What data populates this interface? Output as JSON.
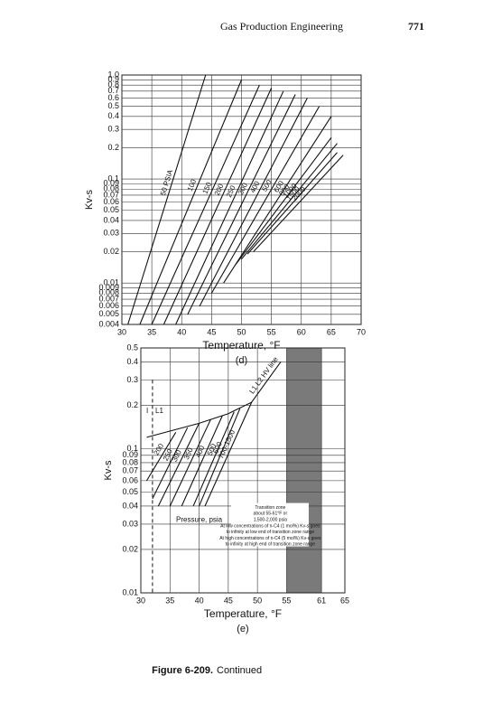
{
  "header": {
    "title": "Gas Production Engineering",
    "page": "771"
  },
  "caption": {
    "label": "Figure 6-209.",
    "text": "Continued"
  },
  "chart_data": [
    {
      "type": "line",
      "subtitle": "(d)",
      "xlabel": "Temperature, °F",
      "ylabel": "Kv-s",
      "ylog": true,
      "grid": true,
      "color": "#111111",
      "xlim": [
        30,
        70
      ],
      "xticks": [
        30,
        35,
        40,
        45,
        50,
        55,
        60,
        65,
        70
      ],
      "ylim": [
        0.004,
        1
      ],
      "yticks": [
        {
          "value": 1,
          "label": "1.0"
        },
        0.9,
        0.8,
        0.7,
        0.6,
        0.5,
        0.4,
        0.3,
        0.2,
        0.1,
        0.09,
        0.08,
        0.07,
        0.06,
        0.05,
        0.04,
        0.03,
        0.02,
        0.01,
        0.009,
        0.008,
        0.007,
        0.006,
        0.005,
        0.004
      ],
      "series": [
        {
          "name": "50 PSIA",
          "x": [
            31,
            44
          ],
          "values": [
            0.004,
            1
          ]
        },
        {
          "name": "100",
          "x": [
            33,
            50
          ],
          "values": [
            0.004,
            0.9
          ]
        },
        {
          "name": "150",
          "x": [
            35,
            53
          ],
          "values": [
            0.004,
            0.8
          ]
        },
        {
          "name": "200",
          "x": [
            37,
            55
          ],
          "values": [
            0.004,
            0.75
          ]
        },
        {
          "name": "250",
          "x": [
            39,
            57
          ],
          "values": [
            0.004,
            0.7
          ]
        },
        {
          "name": "300",
          "x": [
            41,
            59
          ],
          "values": [
            0.005,
            0.65
          ]
        },
        {
          "name": "400",
          "x": [
            43,
            61
          ],
          "values": [
            0.006,
            0.6
          ]
        },
        {
          "name": "500",
          "x": [
            45,
            63
          ],
          "values": [
            0.008,
            0.5
          ]
        },
        {
          "name": "600",
          "x": [
            47,
            65
          ],
          "values": [
            0.01,
            0.4
          ]
        },
        {
          "name": "800",
          "x": [
            49,
            65
          ],
          "values": [
            0.015,
            0.25
          ]
        },
        {
          "name": "1000",
          "x": [
            50,
            66
          ],
          "values": [
            0.017,
            0.22
          ]
        },
        {
          "name": "1500",
          "x": [
            51,
            66
          ],
          "values": [
            0.019,
            0.18
          ]
        },
        {
          "name": "2000",
          "x": [
            52,
            67
          ],
          "values": [
            0.02,
            0.17
          ]
        }
      ]
    },
    {
      "type": "line",
      "subtitle": "(e)",
      "xlabel": "Temperature, °F",
      "ylabel": "Kv-s",
      "ylog": true,
      "grid": true,
      "color": "#111111",
      "xlim": [
        30,
        65
      ],
      "xticks": [
        30,
        35,
        40,
        45,
        50,
        55,
        61,
        65
      ],
      "ylim": [
        0.01,
        0.5
      ],
      "yticks": [
        0.5,
        0.4,
        0.3,
        0.2,
        0.1,
        0.09,
        0.08,
        0.07,
        0.06,
        0.05,
        0.04,
        0.03,
        0.02,
        0.01
      ],
      "band": {
        "x": [
          55,
          61
        ],
        "color": "#7a7a7a"
      },
      "annotations": [
        "I",
        "L1",
        "Pressure, psia"
      ],
      "note": [
        "Transition zone",
        "about 55-61°F or",
        "1,500-2,000 psia",
        "At low concentrations of n-C4 (1 mol%) Kv-s goes",
        "to infinity at low end of transition zone range",
        "At high concentrations of n-C4 (5 mol%) Kv-s goes",
        "to infinity at high end of transition zone range"
      ],
      "series": [
        {
          "name": "L1 L2 HV line",
          "x": [
            31,
            40,
            45,
            49,
            54
          ],
          "values": [
            0.12,
            0.15,
            0.175,
            0.21,
            0.4
          ]
        },
        {
          "name": "200",
          "x": [
            31,
            36
          ],
          "values": [
            0.06,
            0.13
          ]
        },
        {
          "name": "250",
          "x": [
            32,
            38
          ],
          "values": [
            0.045,
            0.14
          ]
        },
        {
          "name": "300",
          "x": [
            33,
            40
          ],
          "values": [
            0.04,
            0.15
          ]
        },
        {
          "name": "350",
          "x": [
            35,
            42
          ],
          "values": [
            0.04,
            0.16
          ]
        },
        {
          "name": "400",
          "x": [
            37,
            44
          ],
          "values": [
            0.04,
            0.17
          ]
        },
        {
          "name": "500",
          "x": [
            39,
            46
          ],
          "values": [
            0.04,
            0.18
          ]
        },
        {
          "name": "600",
          "x": [
            40,
            47
          ],
          "values": [
            0.04,
            0.19
          ]
        },
        {
          "name": "700-1500",
          "x": [
            41,
            49
          ],
          "values": [
            0.04,
            0.21
          ]
        }
      ]
    }
  ]
}
